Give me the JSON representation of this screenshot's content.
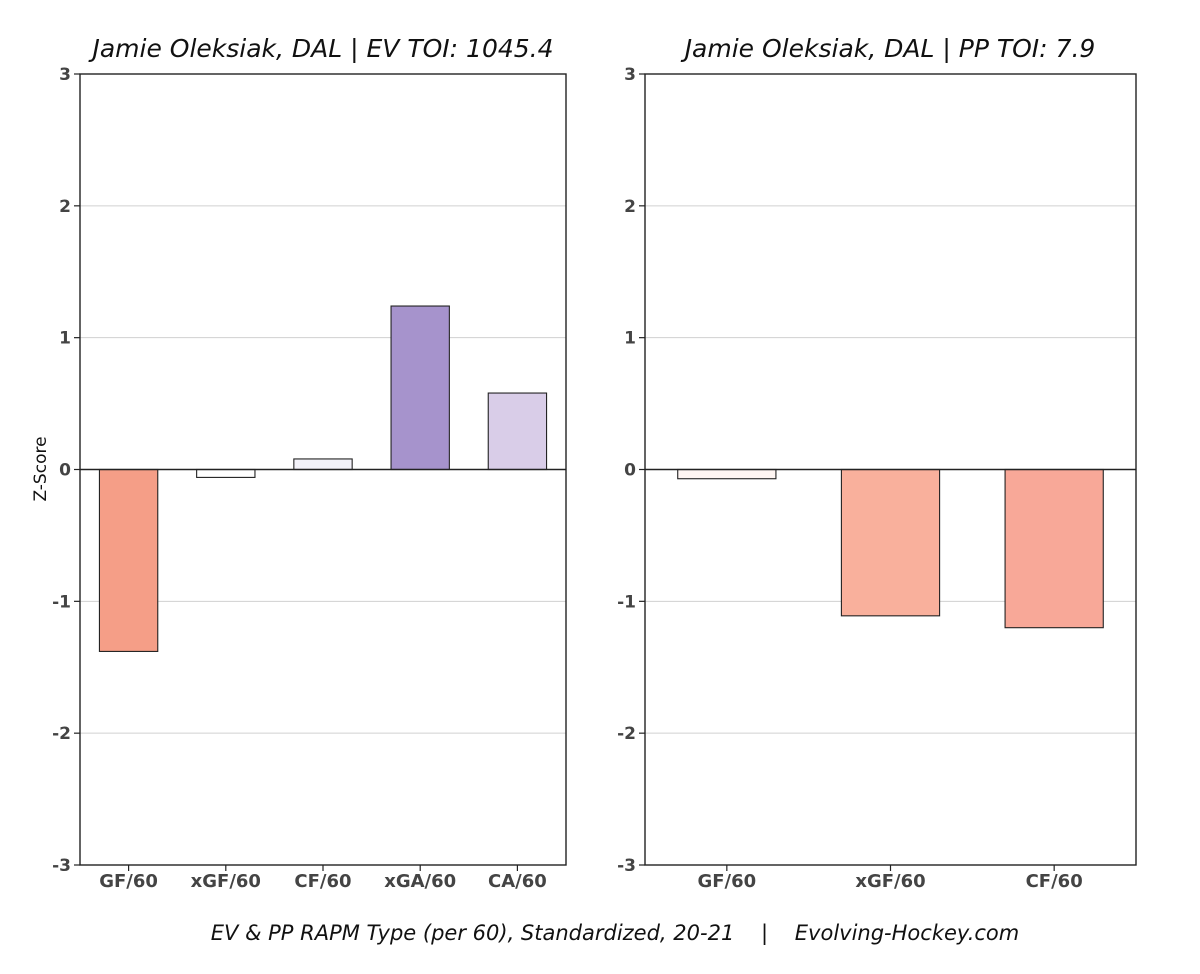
{
  "caption": "EV & PP RAPM Type (per 60), Standardized, 20-21    |    Evolving-Hockey.com",
  "chart_data": [
    {
      "type": "bar",
      "title": "Jamie Oleksiak, DAL  |  EV TOI: 1045.4",
      "ylabel": "Z-Score",
      "xlabel": "",
      "ylim": [
        -3,
        3
      ],
      "yticks": [
        3,
        2,
        1,
        0,
        -1,
        -2,
        -3
      ],
      "grid": true,
      "categories": [
        "GF/60",
        "xGF/60",
        "CF/60",
        "xGA/60",
        "CA/60"
      ],
      "values": [
        -1.38,
        -0.06,
        0.08,
        1.24,
        0.58
      ],
      "colors": [
        "#f59e87",
        "#ffffff",
        "#f3f2f9",
        "#a693cc",
        "#d9cde8"
      ]
    },
    {
      "type": "bar",
      "title": "Jamie Oleksiak, DAL  |  PP TOI: 7.9",
      "ylabel": "",
      "xlabel": "",
      "ylim": [
        -3,
        3
      ],
      "yticks": [
        3,
        2,
        1,
        0,
        -1,
        -2,
        -3
      ],
      "grid": true,
      "categories": [
        "GF/60",
        "xGF/60",
        "CF/60"
      ],
      "values": [
        -0.07,
        -1.11,
        -1.2
      ],
      "colors": [
        "#fff6f3",
        "#f9b09c",
        "#f8a898"
      ]
    }
  ]
}
